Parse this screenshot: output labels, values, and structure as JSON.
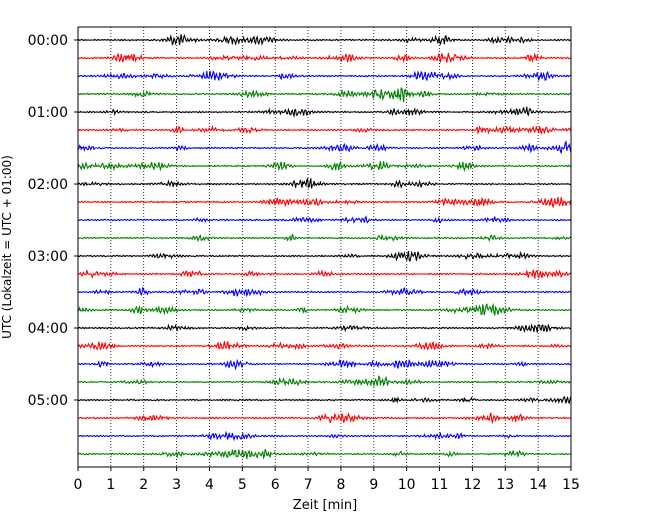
{
  "chart_data": {
    "type": "line",
    "subtype": "helicorder (seismogram drum plot)",
    "title": "",
    "xlabel": "Zeit  [min]",
    "ylabel": "UTC (Lokalzeit = UTC + 01:00)",
    "xlim": [
      0,
      15
    ],
    "x_ticks": [
      "0",
      "1",
      "2",
      "3",
      "4",
      "5",
      "6",
      "7",
      "8",
      "9",
      "10",
      "11",
      "12",
      "13",
      "14",
      "15"
    ],
    "y_ticks": [
      "00:00",
      "01:00",
      "02:00",
      "03:00",
      "04:00",
      "05:00"
    ],
    "vertical_grid": true,
    "grid_style": "dotted",
    "trace_interval_minutes": 15,
    "trace_colors": [
      "#000000",
      "#ff0000",
      "#0000ff",
      "#008000"
    ],
    "rows": [
      {
        "start": "00:00",
        "color": "#000000"
      },
      {
        "start": "00:15",
        "color": "#ff0000"
      },
      {
        "start": "00:30",
        "color": "#0000ff"
      },
      {
        "start": "00:45",
        "color": "#008000"
      },
      {
        "start": "01:00",
        "color": "#000000"
      },
      {
        "start": "01:15",
        "color": "#ff0000"
      },
      {
        "start": "01:30",
        "color": "#0000ff"
      },
      {
        "start": "01:45",
        "color": "#008000"
      },
      {
        "start": "02:00",
        "color": "#000000"
      },
      {
        "start": "02:15",
        "color": "#ff0000"
      },
      {
        "start": "02:30",
        "color": "#0000ff"
      },
      {
        "start": "02:45",
        "color": "#008000"
      },
      {
        "start": "03:00",
        "color": "#000000"
      },
      {
        "start": "03:15",
        "color": "#ff0000"
      },
      {
        "start": "03:30",
        "color": "#0000ff"
      },
      {
        "start": "03:45",
        "color": "#008000"
      },
      {
        "start": "04:00",
        "color": "#000000"
      },
      {
        "start": "04:15",
        "color": "#ff0000"
      },
      {
        "start": "04:30",
        "color": "#0000ff"
      },
      {
        "start": "04:45",
        "color": "#008000"
      },
      {
        "start": "05:00",
        "color": "#000000"
      },
      {
        "start": "05:15",
        "color": "#ff0000"
      },
      {
        "start": "05:30",
        "color": "#0000ff"
      },
      {
        "start": "05:45",
        "color": "#008000"
      }
    ]
  }
}
